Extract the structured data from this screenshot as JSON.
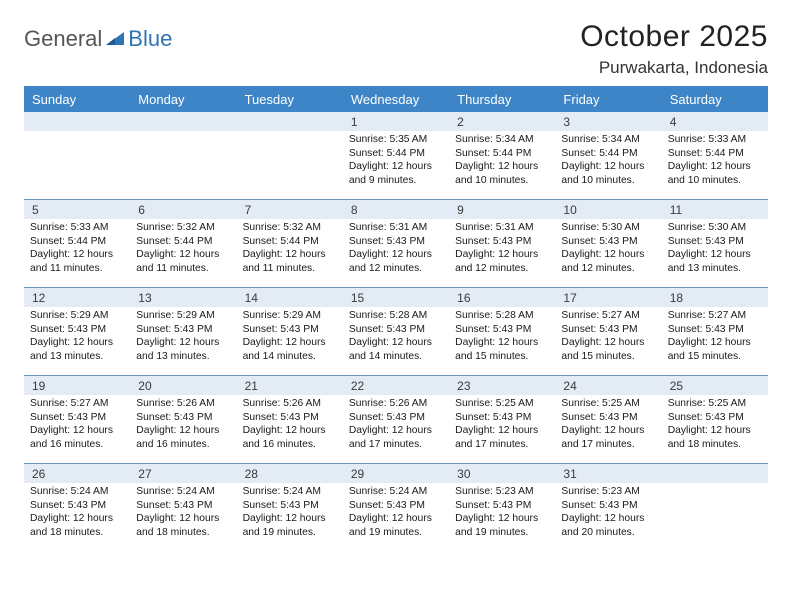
{
  "brand": {
    "part1": "General",
    "part2": "Blue"
  },
  "title": "October 2025",
  "location": "Purwakarta, Indonesia",
  "colors": {
    "header_bg": "#3d85c6",
    "header_text": "#ffffff",
    "daynum_bg": "#e3ecf4",
    "row_divider": "#6e93b7",
    "logo_accent": "#2f75b5"
  },
  "day_headers": [
    "Sunday",
    "Monday",
    "Tuesday",
    "Wednesday",
    "Thursday",
    "Friday",
    "Saturday"
  ],
  "weeks": [
    {
      "nums": [
        "",
        "",
        "",
        "1",
        "2",
        "3",
        "4"
      ],
      "cells": [
        "",
        "",
        "",
        "Sunrise: 5:35 AM\nSunset: 5:44 PM\nDaylight: 12 hours and 9 minutes.",
        "Sunrise: 5:34 AM\nSunset: 5:44 PM\nDaylight: 12 hours and 10 minutes.",
        "Sunrise: 5:34 AM\nSunset: 5:44 PM\nDaylight: 12 hours and 10 minutes.",
        "Sunrise: 5:33 AM\nSunset: 5:44 PM\nDaylight: 12 hours and 10 minutes."
      ]
    },
    {
      "nums": [
        "5",
        "6",
        "7",
        "8",
        "9",
        "10",
        "11"
      ],
      "cells": [
        "Sunrise: 5:33 AM\nSunset: 5:44 PM\nDaylight: 12 hours and 11 minutes.",
        "Sunrise: 5:32 AM\nSunset: 5:44 PM\nDaylight: 12 hours and 11 minutes.",
        "Sunrise: 5:32 AM\nSunset: 5:44 PM\nDaylight: 12 hours and 11 minutes.",
        "Sunrise: 5:31 AM\nSunset: 5:43 PM\nDaylight: 12 hours and 12 minutes.",
        "Sunrise: 5:31 AM\nSunset: 5:43 PM\nDaylight: 12 hours and 12 minutes.",
        "Sunrise: 5:30 AM\nSunset: 5:43 PM\nDaylight: 12 hours and 12 minutes.",
        "Sunrise: 5:30 AM\nSunset: 5:43 PM\nDaylight: 12 hours and 13 minutes."
      ]
    },
    {
      "nums": [
        "12",
        "13",
        "14",
        "15",
        "16",
        "17",
        "18"
      ],
      "cells": [
        "Sunrise: 5:29 AM\nSunset: 5:43 PM\nDaylight: 12 hours and 13 minutes.",
        "Sunrise: 5:29 AM\nSunset: 5:43 PM\nDaylight: 12 hours and 13 minutes.",
        "Sunrise: 5:29 AM\nSunset: 5:43 PM\nDaylight: 12 hours and 14 minutes.",
        "Sunrise: 5:28 AM\nSunset: 5:43 PM\nDaylight: 12 hours and 14 minutes.",
        "Sunrise: 5:28 AM\nSunset: 5:43 PM\nDaylight: 12 hours and 15 minutes.",
        "Sunrise: 5:27 AM\nSunset: 5:43 PM\nDaylight: 12 hours and 15 minutes.",
        "Sunrise: 5:27 AM\nSunset: 5:43 PM\nDaylight: 12 hours and 15 minutes."
      ]
    },
    {
      "nums": [
        "19",
        "20",
        "21",
        "22",
        "23",
        "24",
        "25"
      ],
      "cells": [
        "Sunrise: 5:27 AM\nSunset: 5:43 PM\nDaylight: 12 hours and 16 minutes.",
        "Sunrise: 5:26 AM\nSunset: 5:43 PM\nDaylight: 12 hours and 16 minutes.",
        "Sunrise: 5:26 AM\nSunset: 5:43 PM\nDaylight: 12 hours and 16 minutes.",
        "Sunrise: 5:26 AM\nSunset: 5:43 PM\nDaylight: 12 hours and 17 minutes.",
        "Sunrise: 5:25 AM\nSunset: 5:43 PM\nDaylight: 12 hours and 17 minutes.",
        "Sunrise: 5:25 AM\nSunset: 5:43 PM\nDaylight: 12 hours and 17 minutes.",
        "Sunrise: 5:25 AM\nSunset: 5:43 PM\nDaylight: 12 hours and 18 minutes."
      ]
    },
    {
      "nums": [
        "26",
        "27",
        "28",
        "29",
        "30",
        "31",
        ""
      ],
      "cells": [
        "Sunrise: 5:24 AM\nSunset: 5:43 PM\nDaylight: 12 hours and 18 minutes.",
        "Sunrise: 5:24 AM\nSunset: 5:43 PM\nDaylight: 12 hours and 18 minutes.",
        "Sunrise: 5:24 AM\nSunset: 5:43 PM\nDaylight: 12 hours and 19 minutes.",
        "Sunrise: 5:24 AM\nSunset: 5:43 PM\nDaylight: 12 hours and 19 minutes.",
        "Sunrise: 5:23 AM\nSunset: 5:43 PM\nDaylight: 12 hours and 19 minutes.",
        "Sunrise: 5:23 AM\nSunset: 5:43 PM\nDaylight: 12 hours and 20 minutes.",
        ""
      ]
    }
  ]
}
